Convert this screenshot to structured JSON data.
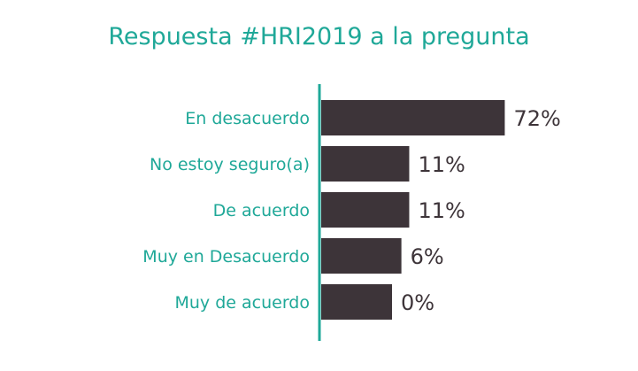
{
  "chart_data": {
    "type": "bar",
    "orientation": "horizontal",
    "title": "Respuesta #HRI2019 a la pregunta",
    "categories": [
      "En desacuerdo",
      "No estoy seguro(a)",
      "De acuerdo",
      "Muy en Desacuerdo",
      "Muy de acuerdo"
    ],
    "values": [
      72,
      11,
      11,
      6,
      0
    ],
    "value_labels": [
      "72%",
      "11%",
      "11%",
      "6%",
      "0%"
    ],
    "xlabel": "",
    "ylabel": "",
    "grid": false,
    "colors": {
      "bar": "#3d3439",
      "label": "#1fa898",
      "axis": "#1fa898",
      "title": "#1fa898",
      "value": "#3d3439"
    }
  }
}
